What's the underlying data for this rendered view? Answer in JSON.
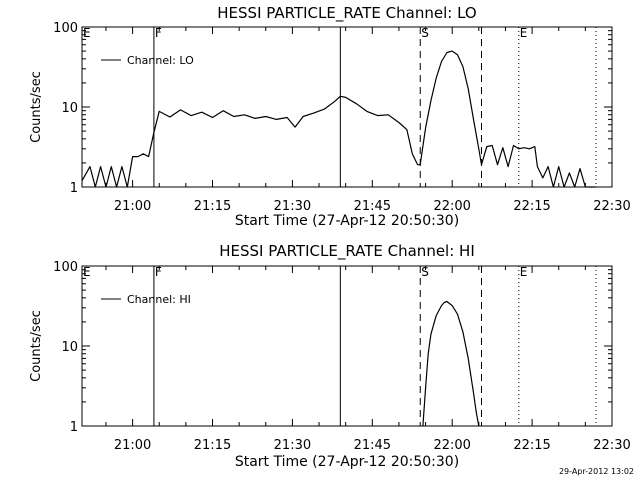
{
  "footer": {
    "timestamp": "29-Apr-2012 13:02"
  },
  "chart_data": [
    {
      "type": "line",
      "title": "HESSI PARTICLE_RATE Channel: LO",
      "xlabel": "Start Time (27-Apr-12 20:50:30)",
      "ylabel": "Counts/sec",
      "yscale": "log",
      "xlim": [
        "20:50:30",
        "22:30:00"
      ],
      "ylim": [
        1,
        100
      ],
      "x_ticks": [
        "21:00",
        "21:15",
        "21:30",
        "21:45",
        "22:00",
        "22:15",
        "22:30"
      ],
      "y_ticks": [
        "1",
        "10",
        "100"
      ],
      "legend": {
        "entries": [
          "Channel: LO"
        ],
        "position": "top-left"
      },
      "grid": false,
      "markers": [
        {
          "label": "E",
          "time": "20:50:30",
          "style": "solid"
        },
        {
          "label": "F",
          "time": "21:04:00",
          "style": "solid"
        },
        {
          "label": "",
          "time": "21:39:00",
          "style": "solid"
        },
        {
          "label": "S",
          "time": "21:54:00",
          "style": "dashed"
        },
        {
          "label": "",
          "time": "22:05:30",
          "style": "dashed"
        },
        {
          "label": "E",
          "time": "22:12:30",
          "style": "dotted"
        },
        {
          "label": "",
          "time": "22:27:00",
          "style": "dotted"
        }
      ],
      "series": [
        {
          "name": "Channel: LO",
          "x": [
            "20:50:30",
            "20:52:00",
            "20:53:00",
            "20:54:00",
            "20:55:00",
            "20:56:00",
            "20:57:00",
            "20:58:00",
            "20:59:00",
            "21:00:00",
            "21:01:00",
            "21:02:00",
            "21:03:00",
            "21:04:00",
            "21:05:00",
            "21:07:00",
            "21:09:00",
            "21:11:00",
            "21:13:00",
            "21:15:00",
            "21:17:00",
            "21:19:00",
            "21:21:00",
            "21:23:00",
            "21:25:00",
            "21:27:00",
            "21:29:00",
            "21:30:30",
            "21:32:00",
            "21:34:00",
            "21:36:00",
            "21:38:00",
            "21:39:00",
            "21:40:00",
            "21:42:00",
            "21:44:00",
            "21:46:00",
            "21:48:00",
            "21:50:00",
            "21:51:30",
            "21:52:30",
            "21:53:30",
            "21:54:00",
            "21:55:00",
            "21:56:00",
            "21:57:00",
            "21:58:00",
            "21:59:00",
            "22:00:00",
            "22:01:00",
            "22:02:00",
            "22:03:00",
            "22:04:00",
            "22:05:00",
            "22:05:30",
            "22:06:30",
            "22:07:30",
            "22:08:30",
            "22:09:30",
            "22:10:30",
            "22:11:30",
            "22:12:30",
            "22:13:30",
            "22:14:30",
            "22:15:30",
            "22:16:00",
            "22:17:00",
            "22:18:00",
            "22:19:00",
            "22:20:00",
            "22:21:00",
            "22:22:00",
            "22:23:00",
            "22:24:00",
            "22:25:00",
            "22:26:00",
            "22:27:00"
          ],
          "values": [
            1.2,
            1.8,
            1.0,
            1.8,
            1.0,
            1.8,
            1.0,
            1.8,
            1.0,
            2.4,
            2.4,
            2.6,
            2.4,
            4.8,
            8.8,
            7.5,
            9.2,
            7.8,
            8.6,
            7.4,
            9.0,
            7.6,
            8.0,
            7.2,
            7.6,
            7.0,
            7.4,
            5.6,
            7.6,
            8.4,
            9.4,
            11.8,
            13.6,
            13.2,
            11.0,
            8.8,
            7.8,
            8.0,
            6.4,
            5.2,
            2.6,
            1.9,
            1.9,
            5.5,
            12.0,
            23.0,
            37.0,
            48.0,
            50.0,
            45.0,
            32.0,
            17.0,
            7.0,
            3.0,
            1.9,
            3.2,
            3.3,
            1.9,
            3.1,
            1.8,
            3.3,
            3.0,
            3.1,
            3.0,
            3.2,
            1.8,
            1.3,
            1.8,
            1.0,
            1.8,
            1.0,
            1.5,
            1.0,
            1.7,
            1.0,
            1.0,
            1.0
          ]
        }
      ]
    },
    {
      "type": "line",
      "title": "HESSI PARTICLE_RATE Channel: HI",
      "xlabel": "Start Time (27-Apr-12 20:50:30)",
      "ylabel": "Counts/sec",
      "yscale": "log",
      "xlim": [
        "20:50:30",
        "22:30:00"
      ],
      "ylim": [
        1,
        100
      ],
      "x_ticks": [
        "21:00",
        "21:15",
        "21:30",
        "21:45",
        "22:00",
        "22:15",
        "22:30"
      ],
      "y_ticks": [
        "1",
        "10",
        "100"
      ],
      "legend": {
        "entries": [
          "Channel: HI"
        ],
        "position": "top-left"
      },
      "grid": false,
      "markers": [
        {
          "label": "E",
          "time": "20:50:30",
          "style": "solid"
        },
        {
          "label": "F",
          "time": "21:04:00",
          "style": "solid"
        },
        {
          "label": "",
          "time": "21:39:00",
          "style": "solid"
        },
        {
          "label": "S",
          "time": "21:54:00",
          "style": "dashed"
        },
        {
          "label": "",
          "time": "22:05:30",
          "style": "dashed"
        },
        {
          "label": "E",
          "time": "22:12:30",
          "style": "dotted"
        },
        {
          "label": "",
          "time": "22:27:00",
          "style": "dotted"
        }
      ],
      "series": [
        {
          "name": "Channel: HI",
          "x": [
            "21:54:30",
            "21:55:00",
            "21:55:30",
            "21:56:00",
            "21:57:00",
            "21:58:00",
            "21:58:30",
            "21:59:00",
            "22:00:00",
            "22:01:00",
            "22:02:00",
            "22:03:00",
            "22:04:00",
            "22:04:30",
            "22:05:00"
          ],
          "values": [
            1.0,
            3.0,
            8.0,
            14.0,
            24.0,
            32.0,
            35.0,
            36.0,
            32.0,
            25.0,
            15.0,
            7.0,
            2.6,
            1.5,
            1.0
          ]
        }
      ]
    }
  ]
}
